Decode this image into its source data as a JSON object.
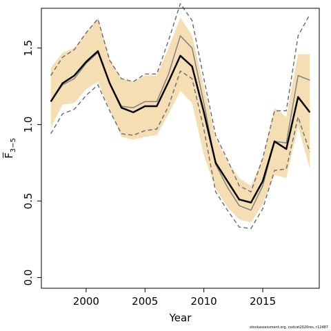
{
  "chart_data": {
    "type": "line",
    "title": "",
    "xlabel": "Year",
    "ylabel": "F̅",
    "ylabel_sub": "3−5",
    "xlim": [
      1996.2,
      2019.8
    ],
    "ylim": [
      -0.07,
      1.76
    ],
    "x_ticks": [
      2000,
      2005,
      2010,
      2015
    ],
    "y_ticks": [
      0.0,
      0.5,
      1.0,
      1.5
    ],
    "x_tick_labels": [
      "2000",
      "2005",
      "2010",
      "2015"
    ],
    "y_tick_labels": [
      "0.0",
      "0.5",
      "1.0",
      "1.5"
    ],
    "x": [
      1997,
      1998,
      1999,
      2000,
      2001,
      2002,
      2003,
      2004,
      2005,
      2006,
      2007,
      2008,
      2009,
      2010,
      2011,
      2012,
      2013,
      2014,
      2015,
      2016,
      2017,
      2018,
      2019
    ],
    "band": {
      "upper": [
        1.37,
        1.47,
        1.5,
        1.6,
        1.7,
        1.43,
        1.3,
        1.28,
        1.32,
        1.32,
        1.5,
        1.7,
        1.58,
        1.25,
        0.91,
        0.76,
        0.65,
        0.6,
        0.78,
        1.11,
        1.05,
        1.46,
        1.46
      ],
      "lower": [
        0.98,
        1.13,
        1.14,
        1.23,
        1.28,
        1.1,
        0.92,
        0.9,
        0.92,
        0.93,
        1.07,
        1.22,
        1.14,
        0.8,
        0.58,
        0.46,
        0.38,
        0.36,
        0.48,
        0.67,
        0.65,
        0.99,
        0.71
      ],
      "color": "#f5deb3"
    },
    "series": [
      {
        "role": "estimate",
        "values": [
          1.15,
          1.27,
          1.32,
          1.41,
          1.48,
          1.27,
          1.11,
          1.08,
          1.12,
          1.12,
          1.28,
          1.45,
          1.38,
          1.08,
          0.75,
          0.63,
          0.51,
          0.49,
          0.63,
          0.89,
          0.84,
          1.18,
          1.08
        ],
        "color": "#000000",
        "width": 2.5
      },
      {
        "role": "alternative",
        "values": [
          1.15,
          1.26,
          1.3,
          1.4,
          1.47,
          1.27,
          1.12,
          1.11,
          1.15,
          1.15,
          1.33,
          1.58,
          1.5,
          1.14,
          0.74,
          0.59,
          0.47,
          0.44,
          0.6,
          0.89,
          0.88,
          1.32,
          1.29
        ],
        "color": "#808080",
        "width": 1.5
      },
      {
        "role": "alt-upper",
        "dashed": true,
        "values": [
          1.32,
          1.44,
          1.49,
          1.6,
          1.69,
          1.42,
          1.3,
          1.28,
          1.33,
          1.33,
          1.55,
          1.79,
          1.68,
          1.3,
          0.93,
          0.77,
          0.6,
          0.56,
          0.78,
          1.09,
          1.09,
          1.58,
          1.72
        ],
        "color": "#707070",
        "width": 1.5
      },
      {
        "role": "alt-lower",
        "dashed": true,
        "values": [
          0.94,
          1.07,
          1.1,
          1.19,
          1.26,
          1.09,
          0.94,
          0.93,
          0.96,
          0.97,
          1.12,
          1.35,
          1.3,
          0.97,
          0.56,
          0.44,
          0.33,
          0.32,
          0.45,
          0.7,
          0.71,
          1.05,
          0.82
        ],
        "color": "#707070",
        "width": 1.5
      }
    ],
    "grid": false,
    "legend": "none"
  },
  "credit": "stockassessment.org, codcat2020res, r12487"
}
